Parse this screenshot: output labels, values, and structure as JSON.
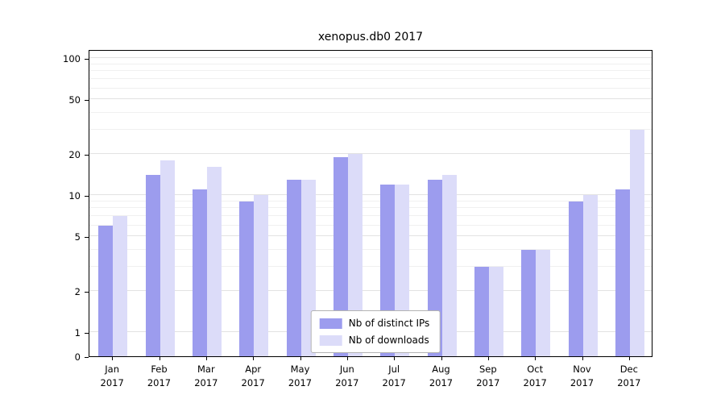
{
  "title": "xenopus.db0 2017",
  "chart_data": {
    "type": "bar",
    "title": "xenopus.db0 2017",
    "yscale": "symlog",
    "grid": true,
    "legend_position": "lower center",
    "categories": [
      "Jan 2017",
      "Feb 2017",
      "Mar 2017",
      "Apr 2017",
      "May 2017",
      "Jun 2017",
      "Jul 2017",
      "Aug 2017",
      "Sep 2017",
      "Oct 2017",
      "Nov 2017",
      "Dec 2017"
    ],
    "series": [
      {
        "name": "Nb of distinct IPs",
        "color": "#9c9cee",
        "values": [
          6,
          14,
          11,
          9,
          13,
          19,
          12,
          13,
          3,
          4,
          9,
          11
        ]
      },
      {
        "name": "Nb of downloads",
        "color": "#dcdcf9",
        "values": [
          7,
          18,
          16,
          10,
          13,
          20,
          12,
          14,
          3,
          4,
          10,
          30
        ]
      }
    ],
    "y_major_ticks": [
      100,
      50,
      20,
      10,
      5,
      2,
      1,
      0
    ],
    "y_minor_ticks": [
      3,
      4,
      6,
      7,
      8,
      9,
      30,
      40,
      60,
      70,
      80,
      90
    ],
    "ylim": [
      0,
      116
    ],
    "xlabel": "",
    "ylabel": ""
  }
}
